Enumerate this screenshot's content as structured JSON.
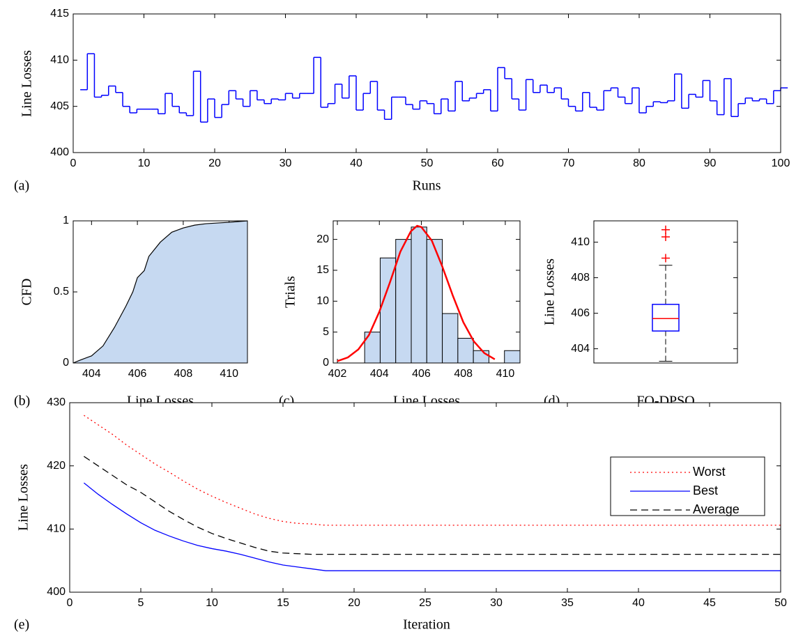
{
  "chart_data": [
    {
      "type": "stairs",
      "label": "(a)",
      "xlabel": "Runs",
      "ylabel": "Line Losses",
      "color": "#0000ff",
      "x": [
        1,
        2,
        3,
        4,
        5,
        6,
        7,
        8,
        9,
        10,
        11,
        12,
        13,
        14,
        15,
        16,
        17,
        18,
        19,
        20,
        21,
        22,
        23,
        24,
        25,
        26,
        27,
        28,
        29,
        30,
        31,
        32,
        33,
        34,
        35,
        36,
        37,
        38,
        39,
        40,
        41,
        42,
        43,
        44,
        45,
        46,
        47,
        48,
        49,
        50,
        51,
        52,
        53,
        54,
        55,
        56,
        57,
        58,
        59,
        60,
        61,
        62,
        63,
        64,
        65,
        66,
        67,
        68,
        69,
        70,
        71,
        72,
        73,
        74,
        75,
        76,
        77,
        78,
        79,
        80,
        81,
        82,
        83,
        84,
        85,
        86,
        87,
        88,
        89,
        90,
        91,
        92,
        93,
        94,
        95,
        96,
        97,
        98,
        99,
        100
      ],
      "values": [
        406.8,
        410.7,
        406.0,
        406.2,
        407.2,
        406.5,
        405.0,
        404.3,
        404.7,
        404.7,
        404.7,
        404.2,
        406.4,
        405.0,
        404.3,
        404.0,
        408.8,
        403.3,
        405.8,
        403.8,
        405.2,
        406.7,
        405.8,
        405.0,
        406.7,
        405.7,
        405.3,
        405.8,
        405.7,
        406.4,
        405.9,
        406.4,
        406.4,
        410.3,
        404.9,
        405.3,
        407.4,
        405.9,
        408.3,
        404.6,
        406.4,
        407.7,
        404.6,
        403.6,
        406.0,
        406.0,
        405.2,
        404.7,
        405.6,
        405.3,
        404.2,
        405.8,
        404.5,
        407.7,
        405.6,
        405.9,
        406.4,
        406.8,
        404.5,
        409.2,
        408.0,
        405.8,
        404.6,
        407.9,
        406.5,
        407.3,
        406.5,
        407.0,
        405.8,
        405.0,
        404.5,
        406.5,
        404.9,
        404.6,
        406.7,
        407.0,
        406.0,
        405.3,
        407.0,
        404.3,
        405.0,
        405.5,
        405.4,
        405.6,
        408.5,
        404.8,
        406.3,
        406.0,
        407.8,
        405.6,
        404.1,
        408.0,
        403.9,
        405.3,
        405.9,
        405.6,
        405.8,
        405.3,
        406.7,
        407.0
      ],
      "xlim": [
        0,
        100
      ],
      "xticks": [
        0,
        10,
        20,
        30,
        40,
        50,
        60,
        70,
        80,
        90,
        100
      ],
      "ylim": [
        400,
        415
      ],
      "yticks": [
        400,
        405,
        410,
        415
      ]
    },
    {
      "type": "area",
      "label": "(b)",
      "xlabel": "Line Losses",
      "ylabel": "CFD",
      "color": "#c6d9f1",
      "line_color": "#000000",
      "x": [
        403.2,
        403.5,
        404.0,
        404.5,
        405.0,
        405.5,
        405.8,
        406.0,
        406.3,
        406.5,
        407.0,
        407.5,
        408.0,
        408.5,
        409.0,
        410.0,
        410.8
      ],
      "y": [
        0,
        0.02,
        0.05,
        0.12,
        0.25,
        0.4,
        0.5,
        0.6,
        0.65,
        0.75,
        0.85,
        0.92,
        0.95,
        0.97,
        0.98,
        0.99,
        1.0
      ],
      "xlim": [
        403.2,
        410.8
      ],
      "xticks": [
        404,
        406,
        408,
        410
      ],
      "ylim": [
        0,
        1
      ],
      "yticks": [
        0,
        0.5,
        1
      ]
    },
    {
      "type": "histogram",
      "label": "(c)",
      "xlabel": "Line Losses",
      "ylabel": "Trials",
      "color": "#c6d9f1",
      "bins": [
        403.3,
        404.04,
        404.78,
        405.52,
        406.26,
        407.0,
        407.74,
        408.48,
        409.22,
        409.96,
        410.7
      ],
      "counts": [
        5,
        17,
        20,
        22,
        20,
        8,
        4,
        2,
        0,
        2
      ],
      "fit": {
        "color": "#ff0000",
        "x": [
          402,
          402.5,
          403,
          403.5,
          404,
          404.5,
          405,
          405.5,
          405.8,
          406,
          406.5,
          407,
          407.5,
          408,
          408.5,
          409,
          409.5
        ],
        "y": [
          0.3,
          0.9,
          2.2,
          4.5,
          8.3,
          13,
          18,
          21.3,
          22.2,
          22,
          19.8,
          15.6,
          10.9,
          6.6,
          3.5,
          1.6,
          0.6
        ]
      },
      "xlim": [
        401.8,
        410.7
      ],
      "xticks": [
        402,
        404,
        406,
        408,
        410
      ],
      "ylim": [
        0,
        23
      ],
      "yticks": [
        0,
        5,
        10,
        15,
        20
      ]
    },
    {
      "type": "box",
      "label": "(d)",
      "ylabel": "Line Losses",
      "categories": [
        "FO-DPSO"
      ],
      "boxes": [
        {
          "whisker_low": 403.3,
          "q1": 405.0,
          "median": 405.7,
          "q3": 406.5,
          "whisker_high": 408.7,
          "outliers": [
            409.1,
            410.3,
            410.7
          ]
        }
      ],
      "box_color": "#0000ff",
      "median_color": "#ff0000",
      "outlier_color": "#ff0000",
      "ylim": [
        403.2,
        411.2
      ],
      "yticks": [
        404,
        406,
        408,
        410
      ]
    },
    {
      "type": "line",
      "label": "(e)",
      "xlabel": "Iteration",
      "ylabel": "Line Losses",
      "legend": "northeast",
      "x": [
        1,
        2,
        3,
        4,
        5,
        6,
        7,
        8,
        9,
        10,
        11,
        12,
        13,
        14,
        15,
        16,
        17,
        18,
        19,
        20,
        21,
        22,
        23,
        24,
        25,
        26,
        27,
        28,
        29,
        30,
        31,
        32,
        33,
        34,
        35,
        36,
        37,
        38,
        39,
        40,
        41,
        42,
        43,
        44,
        45,
        46,
        47,
        48,
        49,
        50
      ],
      "series": [
        {
          "name": "Worst",
          "color": "#ff0000",
          "linestyle": "dotted",
          "values": [
            428,
            426.5,
            425,
            423.3,
            421.8,
            420.3,
            419,
            417.6,
            416.3,
            415.2,
            414.2,
            413.3,
            412.4,
            411.7,
            411.2,
            410.9,
            410.8,
            410.6,
            410.6,
            410.6,
            410.6,
            410.6,
            410.6,
            410.6,
            410.6,
            410.6,
            410.6,
            410.6,
            410.6,
            410.6,
            410.6,
            410.6,
            410.6,
            410.6,
            410.6,
            410.6,
            410.6,
            410.6,
            410.6,
            410.6,
            410.6,
            410.6,
            410.6,
            410.6,
            410.6,
            410.6,
            410.6,
            410.6,
            410.6,
            410.6
          ]
        },
        {
          "name": "Best",
          "color": "#0000ff",
          "linestyle": "solid",
          "values": [
            417.3,
            415.5,
            413.9,
            412.4,
            411,
            409.8,
            408.9,
            408.1,
            407.4,
            406.9,
            406.5,
            406,
            405.4,
            404.8,
            404.3,
            404,
            403.7,
            403.4,
            403.4,
            403.4,
            403.4,
            403.4,
            403.4,
            403.4,
            403.4,
            403.4,
            403.4,
            403.4,
            403.4,
            403.4,
            403.4,
            403.4,
            403.4,
            403.4,
            403.4,
            403.4,
            403.4,
            403.4,
            403.4,
            403.4,
            403.4,
            403.4,
            403.4,
            403.4,
            403.4,
            403.4,
            403.4,
            403.4,
            403.4,
            403.4
          ]
        },
        {
          "name": "Average",
          "color": "#000000",
          "linestyle": "dashed",
          "values": [
            421.5,
            420,
            418.5,
            417,
            415.8,
            414.3,
            412.8,
            411.5,
            410.3,
            409.3,
            408.5,
            407.8,
            407.1,
            406.5,
            406.2,
            406.1,
            406,
            406,
            406,
            406,
            406,
            406,
            406,
            406,
            406,
            406,
            406,
            406,
            406,
            406,
            406,
            406,
            406,
            406,
            406,
            406,
            406,
            406,
            406,
            406,
            406,
            406,
            406,
            406,
            406,
            406,
            406,
            406,
            406,
            406
          ]
        }
      ],
      "xlim": [
        0,
        50
      ],
      "xticks": [
        0,
        5,
        10,
        15,
        20,
        25,
        30,
        35,
        40,
        45,
        50
      ],
      "ylim": [
        400,
        430
      ],
      "yticks": [
        400,
        410,
        420,
        430
      ]
    }
  ]
}
